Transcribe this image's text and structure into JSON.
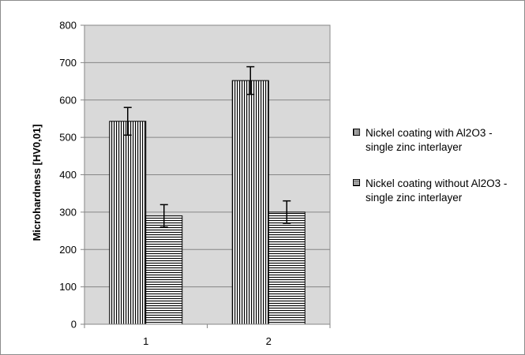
{
  "chart_data": {
    "type": "bar",
    "categories": [
      "1",
      "2"
    ],
    "series": [
      {
        "name": "Nickel coating with Al2O3 - single zinc interlayer",
        "values": [
          543,
          652
        ],
        "error": [
          37,
          37
        ],
        "pattern": "vertical-lines"
      },
      {
        "name": "Nickel coating without Al2O3 - single zinc interlayer",
        "values": [
          290,
          300
        ],
        "error": [
          30,
          30
        ],
        "pattern": "horizontal-lines"
      }
    ],
    "xlabel": "",
    "ylabel": "Microhardness [HV0,01]",
    "ylim": [
      0,
      800
    ],
    "yticks": [
      0,
      100,
      200,
      300,
      400,
      500,
      600,
      700,
      800
    ],
    "grid": true,
    "plot_background": "#d9d9d9",
    "legend_position": "right"
  },
  "legend": {
    "items": [
      {
        "label": "Nickel coating with Al2O3 - single zinc interlayer"
      },
      {
        "label": "Nickel coating without Al2O3 - single zinc interlayer"
      }
    ]
  }
}
